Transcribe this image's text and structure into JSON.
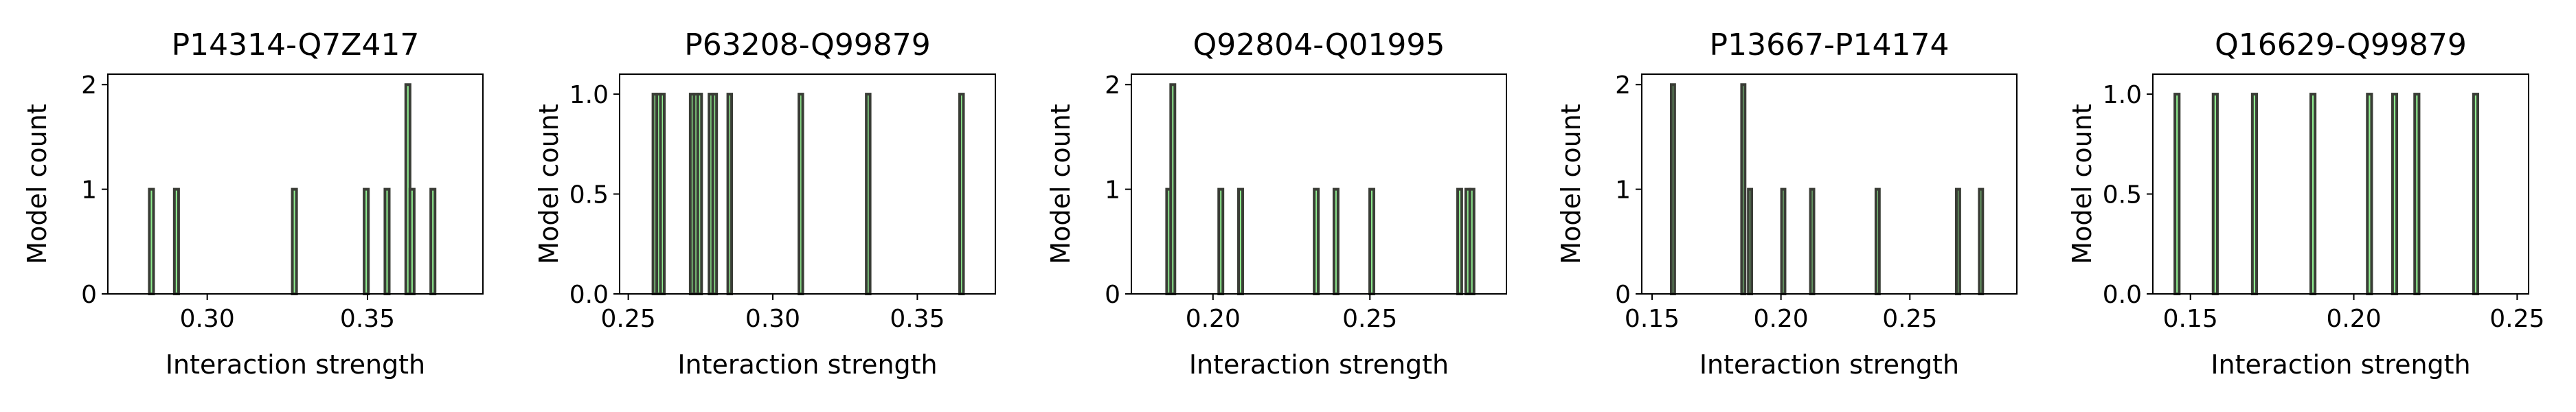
{
  "figure": {
    "background": "#ffffff"
  },
  "style": {
    "bar_edge": "#3a3d36",
    "bar_fill": "#90ee90",
    "axis_color": "#000000"
  },
  "chart_data": [
    {
      "type": "bar",
      "title": "P14314-Q7Z417",
      "xlabel": "Interaction strength",
      "ylabel": "Model count",
      "xlim": [
        0.269,
        0.386
      ],
      "ylim": [
        0,
        2.1
      ],
      "xticks": [
        0.3,
        0.35
      ],
      "xtick_labels": [
        "0.30",
        "0.35"
      ],
      "yticks": [
        0,
        1,
        2
      ],
      "ytick_labels": [
        "0",
        "1",
        "2"
      ],
      "bin_width": 0.0013,
      "bars": [
        {
          "x": 0.2826,
          "count": 1
        },
        {
          "x": 0.2904,
          "count": 1
        },
        {
          "x": 0.3272,
          "count": 1
        },
        {
          "x": 0.3496,
          "count": 1
        },
        {
          "x": 0.3561,
          "count": 1
        },
        {
          "x": 0.3626,
          "count": 2
        },
        {
          "x": 0.3639,
          "count": 1
        },
        {
          "x": 0.3704,
          "count": 1
        }
      ]
    },
    {
      "type": "bar",
      "title": "P63208-Q99879",
      "xlabel": "Interaction strength",
      "ylabel": "Model count",
      "xlim": [
        0.247,
        0.377
      ],
      "ylim": [
        0,
        1.1
      ],
      "xticks": [
        0.25,
        0.3,
        0.35
      ],
      "xtick_labels": [
        "0.25",
        "0.30",
        "0.35"
      ],
      "yticks": [
        0,
        0.5,
        1
      ],
      "ytick_labels": [
        "0.0",
        "0.5",
        "1.0"
      ],
      "bin_width": 0.0013,
      "bars": [
        {
          "x": 0.2592,
          "count": 1
        },
        {
          "x": 0.2605,
          "count": 1
        },
        {
          "x": 0.2618,
          "count": 1
        },
        {
          "x": 0.2721,
          "count": 1
        },
        {
          "x": 0.2734,
          "count": 1
        },
        {
          "x": 0.2747,
          "count": 1
        },
        {
          "x": 0.2786,
          "count": 1
        },
        {
          "x": 0.2799,
          "count": 1
        },
        {
          "x": 0.2851,
          "count": 1
        },
        {
          "x": 0.3097,
          "count": 1
        },
        {
          "x": 0.333,
          "count": 1
        },
        {
          "x": 0.3653,
          "count": 1
        }
      ]
    },
    {
      "type": "bar",
      "title": "Q92804-Q01995",
      "xlabel": "Interaction strength",
      "ylabel": "Model count",
      "xlim": [
        0.174,
        0.2935
      ],
      "ylim": [
        0,
        2.1
      ],
      "xticks": [
        0.2,
        0.25
      ],
      "xtick_labels": [
        "0.20",
        "0.25"
      ],
      "yticks": [
        0,
        1,
        2
      ],
      "ytick_labels": [
        "0",
        "1",
        "2"
      ],
      "bin_width": 0.0013,
      "bars": [
        {
          "x": 0.1859,
          "count": 1
        },
        {
          "x": 0.1872,
          "count": 2
        },
        {
          "x": 0.2025,
          "count": 1
        },
        {
          "x": 0.2088,
          "count": 1
        },
        {
          "x": 0.2329,
          "count": 1
        },
        {
          "x": 0.2392,
          "count": 1
        },
        {
          "x": 0.2506,
          "count": 1
        },
        {
          "x": 0.2786,
          "count": 1
        },
        {
          "x": 0.2812,
          "count": 1
        },
        {
          "x": 0.2825,
          "count": 1
        }
      ]
    },
    {
      "type": "bar",
      "title": "P13667-P14174",
      "xlabel": "Interaction strength",
      "ylabel": "Model count",
      "xlim": [
        0.146,
        0.2915
      ],
      "ylim": [
        0,
        2.1
      ],
      "xticks": [
        0.15,
        0.2,
        0.25
      ],
      "xtick_labels": [
        "0.15",
        "0.20",
        "0.25"
      ],
      "yticks": [
        0,
        1,
        2
      ],
      "ytick_labels": [
        "0",
        "1",
        "2"
      ],
      "bin_width": 0.0013,
      "bars": [
        {
          "x": 0.1581,
          "count": 2
        },
        {
          "x": 0.1854,
          "count": 2
        },
        {
          "x": 0.188,
          "count": 1
        },
        {
          "x": 0.2009,
          "count": 1
        },
        {
          "x": 0.2121,
          "count": 1
        },
        {
          "x": 0.2375,
          "count": 1
        },
        {
          "x": 0.2687,
          "count": 1
        },
        {
          "x": 0.2776,
          "count": 1
        }
      ]
    },
    {
      "type": "bar",
      "title": "Q16629-Q99879",
      "xlabel": "Interaction strength",
      "ylabel": "Model count",
      "xlim": [
        0.1385,
        0.2535
      ],
      "ylim": [
        0,
        1.1
      ],
      "xticks": [
        0.15,
        0.2,
        0.25
      ],
      "xtick_labels": [
        "0.15",
        "0.20",
        "0.25"
      ],
      "yticks": [
        0,
        0.5,
        1
      ],
      "ytick_labels": [
        "0.0",
        "0.5",
        "1.0"
      ],
      "bin_width": 0.0013,
      "bars": [
        {
          "x": 0.1459,
          "count": 1
        },
        {
          "x": 0.1576,
          "count": 1
        },
        {
          "x": 0.1696,
          "count": 1
        },
        {
          "x": 0.1875,
          "count": 1
        },
        {
          "x": 0.2048,
          "count": 1
        },
        {
          "x": 0.2125,
          "count": 1
        },
        {
          "x": 0.2193,
          "count": 1
        },
        {
          "x": 0.2373,
          "count": 1
        }
      ]
    }
  ]
}
